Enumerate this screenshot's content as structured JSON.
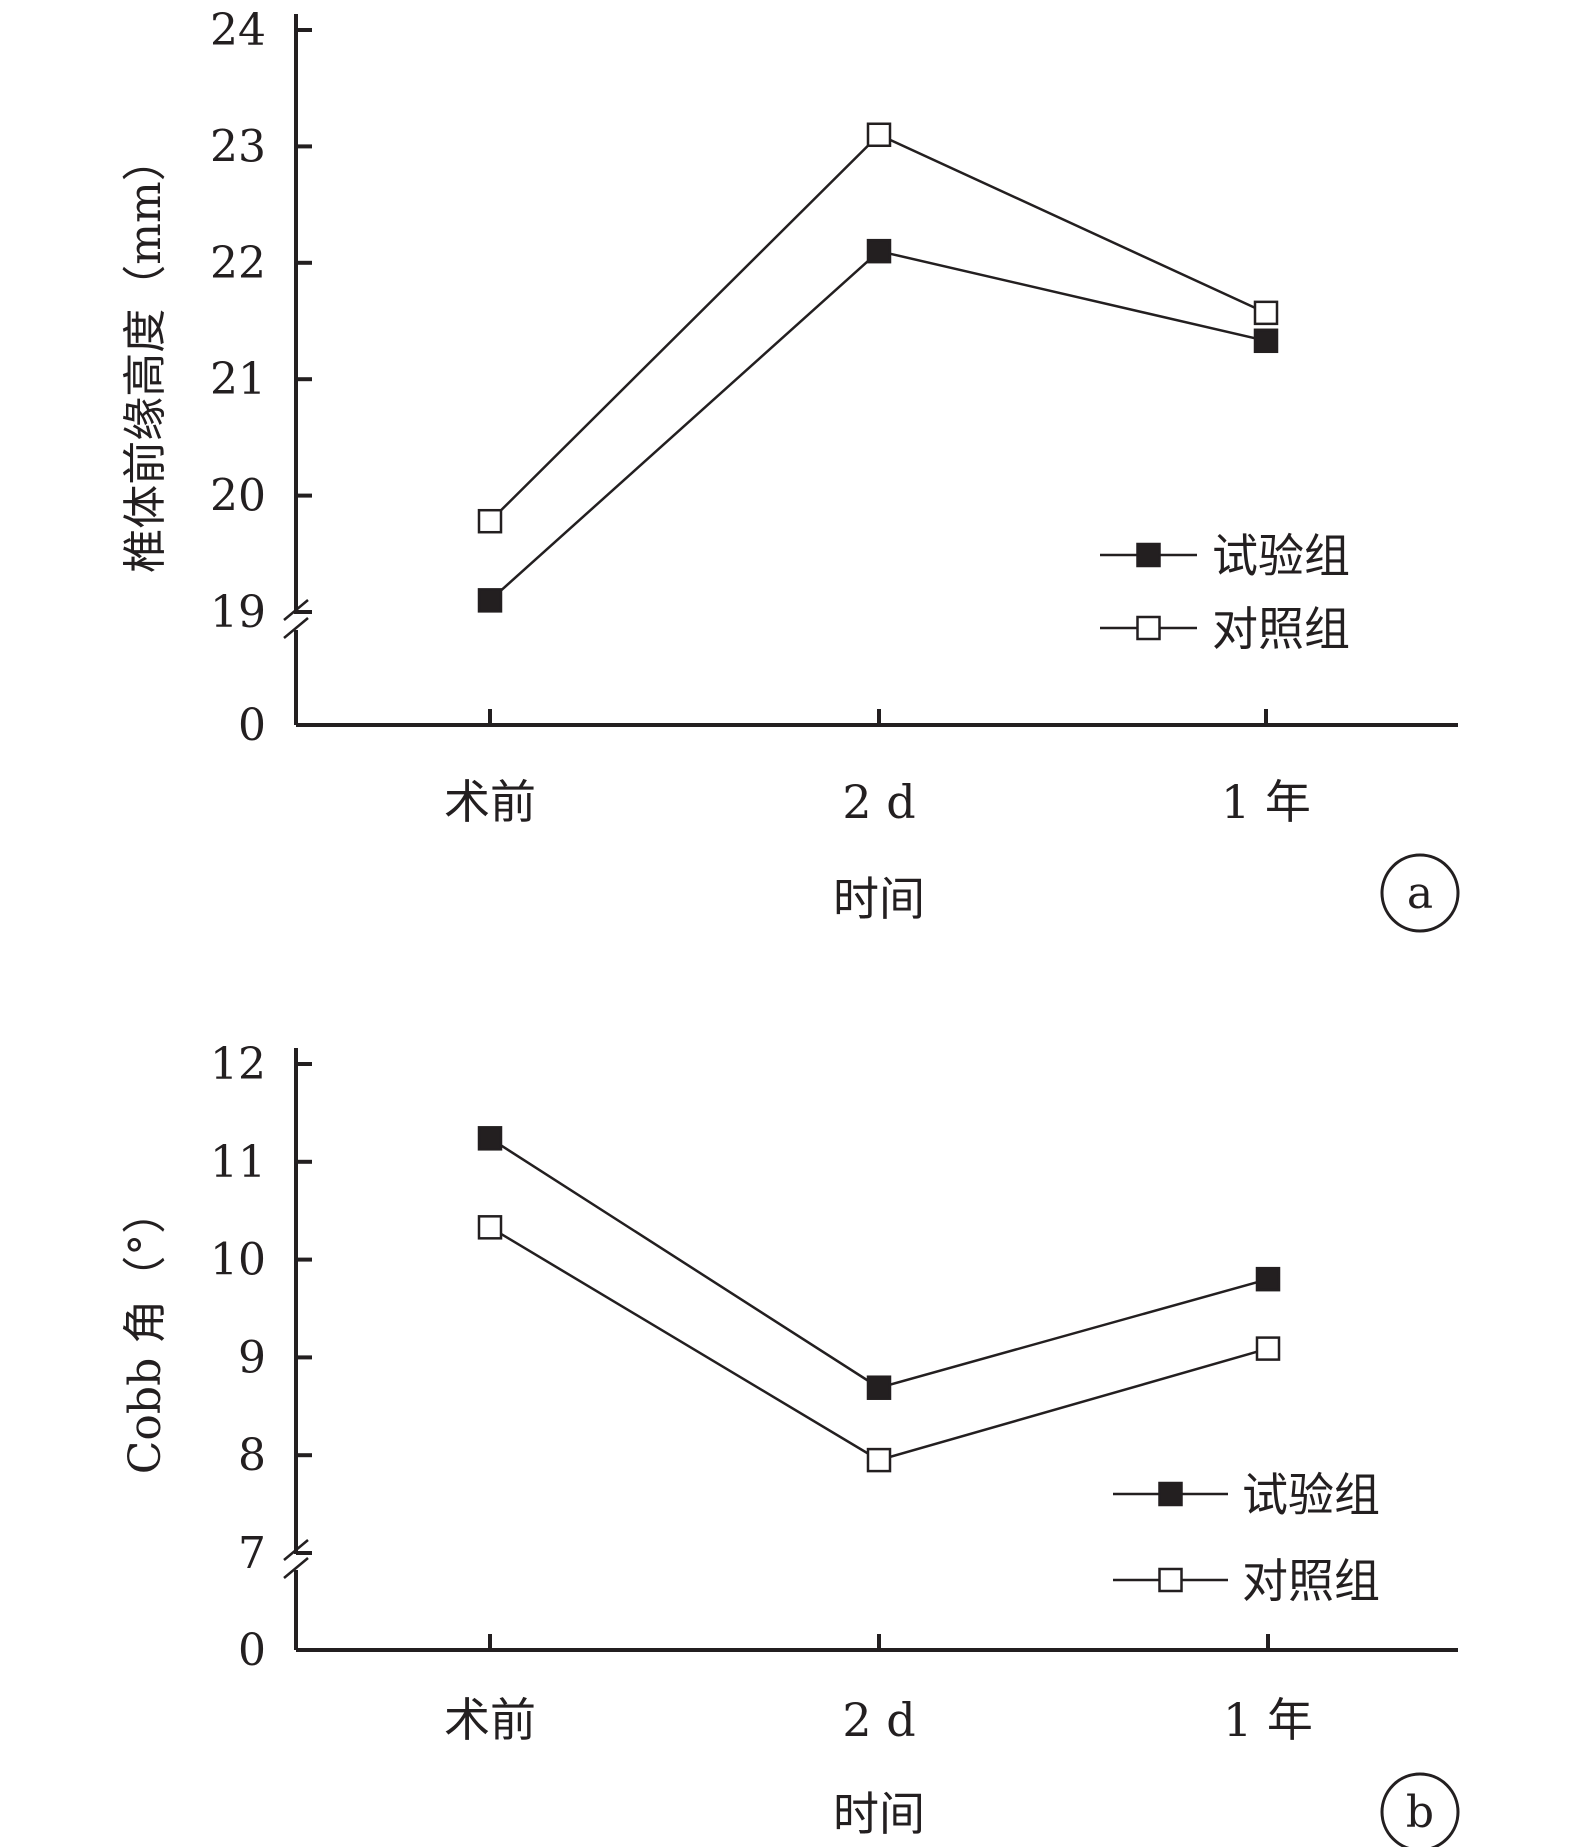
{
  "chart_data": [
    {
      "type": "line",
      "panel_label": "a",
      "xlabel": "时间",
      "ylabel": "椎体前缘高度（mm）",
      "categories": [
        "术前",
        "2 d",
        "1 年"
      ],
      "y_ticks": [
        "0",
        "19",
        "20",
        "21",
        "22",
        "23",
        "24"
      ],
      "axis_break": true,
      "ylim": [
        19,
        24
      ],
      "series": [
        {
          "name": "试验组",
          "marker": "filled-square",
          "values": [
            19.1,
            22.1,
            21.33
          ]
        },
        {
          "name": "对照组",
          "marker": "open-square",
          "values": [
            19.78,
            23.1,
            21.57
          ]
        }
      ],
      "legend_position": "bottom-right",
      "grid": false
    },
    {
      "type": "line",
      "panel_label": "b",
      "xlabel": "时间",
      "ylabel": "Cobb 角（°）",
      "categories": [
        "术前",
        "2 d",
        "1 年"
      ],
      "y_ticks": [
        "0",
        "7",
        "8",
        "9",
        "10",
        "11",
        "12"
      ],
      "axis_break": true,
      "ylim": [
        7,
        12
      ],
      "series": [
        {
          "name": "试验组",
          "marker": "filled-square",
          "values": [
            11.24,
            8.69,
            9.8
          ]
        },
        {
          "name": "对照组",
          "marker": "open-square",
          "values": [
            10.33,
            7.95,
            9.09
          ]
        }
      ],
      "legend_position": "bottom-right",
      "grid": false
    }
  ],
  "colors": {
    "ink": "#231f20",
    "background": "#ffffff"
  }
}
